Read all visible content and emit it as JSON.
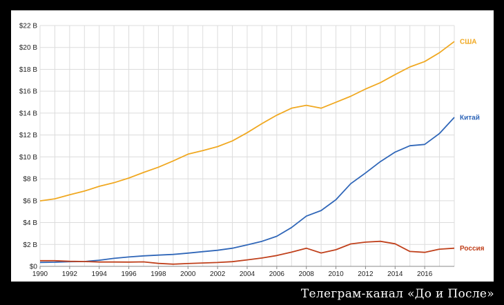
{
  "chart_data": {
    "type": "line",
    "title": "",
    "xlabel": "",
    "ylabel": "",
    "x": [
      1990,
      1991,
      1992,
      1993,
      1994,
      1995,
      1996,
      1997,
      1998,
      1999,
      2000,
      2001,
      2002,
      2003,
      2004,
      2005,
      2006,
      2007,
      2008,
      2009,
      2010,
      2011,
      2012,
      2013,
      2014,
      2015,
      2016,
      2017,
      2018
    ],
    "xlim": [
      1990,
      2018
    ],
    "ylim": [
      0,
      22
    ],
    "xticks": [
      1990,
      1992,
      1994,
      1996,
      1998,
      2000,
      2002,
      2004,
      2006,
      2008,
      2010,
      2012,
      2014,
      2016
    ],
    "xtick_labels": [
      "1990",
      "1992",
      "1994",
      "1996",
      "1998",
      "2000",
      "2002",
      "2004",
      "2006",
      "2008",
      "2010",
      "2012",
      "2014",
      "2016"
    ],
    "yticks": [
      0,
      2,
      4,
      6,
      8,
      10,
      12,
      14,
      16,
      18,
      20,
      22
    ],
    "ytick_labels": [
      "$0",
      "$2 B",
      "$4 B",
      "$6 B",
      "$8 B",
      "$10 B",
      "$12 B",
      "$14 B",
      "$16 B",
      "$18 B",
      "$20 B",
      "$22 B"
    ],
    "grid": true,
    "legend": "inline labels at line ends",
    "series": [
      {
        "name": "США",
        "color": "#f0a820",
        "values": [
          5.98,
          6.17,
          6.54,
          6.88,
          7.31,
          7.64,
          8.07,
          8.58,
          9.06,
          9.63,
          10.25,
          10.58,
          10.94,
          11.46,
          12.21,
          13.04,
          13.81,
          14.45,
          14.71,
          14.45,
          14.99,
          15.54,
          16.2,
          16.78,
          17.52,
          18.22,
          18.71,
          19.52,
          20.54
        ]
      },
      {
        "name": "Китай",
        "color": "#2f66b8",
        "values": [
          0.36,
          0.38,
          0.43,
          0.44,
          0.56,
          0.73,
          0.86,
          0.96,
          1.03,
          1.09,
          1.21,
          1.34,
          1.47,
          1.66,
          1.96,
          2.29,
          2.75,
          3.55,
          4.59,
          5.1,
          6.09,
          7.55,
          8.53,
          9.57,
          10.44,
          11.02,
          11.14,
          12.14,
          13.61
        ]
      },
      {
        "name": "Россия",
        "color": "#c0401b",
        "values": [
          0.52,
          0.52,
          0.46,
          0.44,
          0.4,
          0.4,
          0.39,
          0.41,
          0.27,
          0.2,
          0.26,
          0.31,
          0.35,
          0.43,
          0.59,
          0.76,
          0.99,
          1.3,
          1.66,
          1.22,
          1.52,
          2.05,
          2.21,
          2.29,
          2.06,
          1.36,
          1.28,
          1.57,
          1.66
        ]
      }
    ]
  },
  "watermark": "Телеграм-канал «До и После»"
}
